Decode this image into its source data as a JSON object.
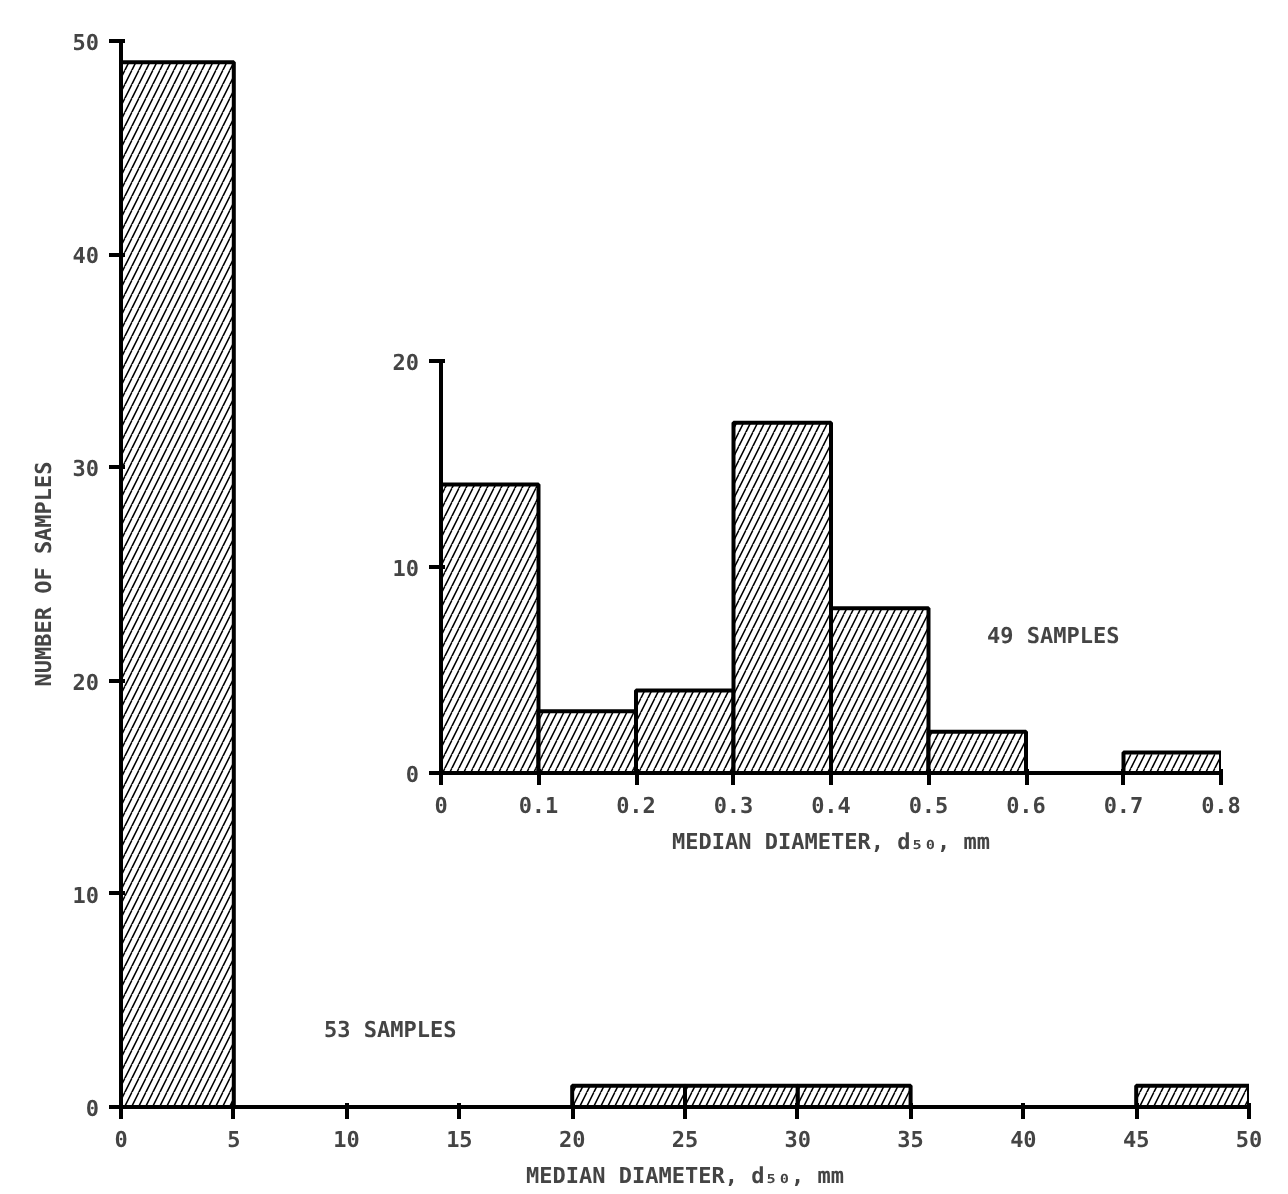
{
  "chart_data": [
    {
      "type": "histogram",
      "xlabel": "MEDIAN DIAMETER, d₅₀, mm",
      "ylabel": "NUMBER OF SAMPLES",
      "bins": [
        0,
        5,
        10,
        15,
        20,
        25,
        30,
        35,
        40,
        45,
        50
      ],
      "values": [
        49,
        0,
        0,
        0,
        1,
        1,
        1,
        0,
        0,
        1
      ],
      "xlim": [
        0,
        50
      ],
      "ylim": [
        0,
        50
      ],
      "xticks": [
        0,
        5,
        10,
        15,
        20,
        25,
        30,
        35,
        40,
        45,
        50
      ],
      "yticks": [
        0,
        10,
        20,
        30,
        40,
        50
      ],
      "annotations": [
        "53 SAMPLES"
      ],
      "grid": false
    },
    {
      "type": "histogram",
      "xlabel": "MEDIAN DIAMETER, d₅₀, mm",
      "bins": [
        0,
        0.1,
        0.2,
        0.3,
        0.4,
        0.5,
        0.6,
        0.7,
        0.8
      ],
      "values": [
        14,
        3,
        4,
        17,
        8,
        2,
        0,
        1
      ],
      "xlim": [
        0,
        0.8
      ],
      "ylim": [
        0,
        20
      ],
      "xticks": [
        0,
        0.1,
        0.2,
        0.3,
        0.4,
        0.5,
        0.6,
        0.7,
        0.8
      ],
      "yticks": [
        0,
        10,
        20
      ],
      "annotations": [
        "49 SAMPLES"
      ],
      "grid": false
    }
  ]
}
